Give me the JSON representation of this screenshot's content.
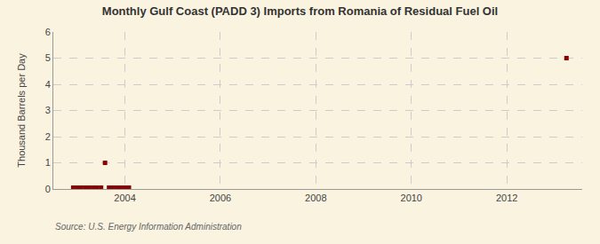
{
  "chart_data": {
    "type": "scatter",
    "title": "Monthly Gulf Coast (PADD 3) Imports from Romania of Residual Fuel Oil",
    "ylabel": "Thousand Barrels per Day",
    "source": "Source: U.S. Energy Information Administration",
    "x": [
      2002.917,
      2003.0,
      2003.083,
      2003.167,
      2003.25,
      2003.333,
      2003.417,
      2003.5,
      2003.583,
      2003.667,
      2003.75,
      2003.833,
      2003.917,
      2004.0,
      2004.083,
      2013.25
    ],
    "values": [
      0.05,
      0.05,
      0.05,
      0.05,
      0.05,
      0.05,
      0.05,
      0.05,
      1.0,
      0.05,
      0.05,
      0.05,
      0.05,
      0.05,
      0.05,
      5.0
    ],
    "color": "#8b0000",
    "marker": "square",
    "xlim": [
      2002.5,
      2013.58
    ],
    "xticks": [
      2004,
      2006,
      2008,
      2010,
      2012
    ],
    "ylim": [
      0,
      6
    ],
    "yticks": [
      0,
      1,
      2,
      3,
      4,
      5,
      6
    ],
    "grid": true
  }
}
